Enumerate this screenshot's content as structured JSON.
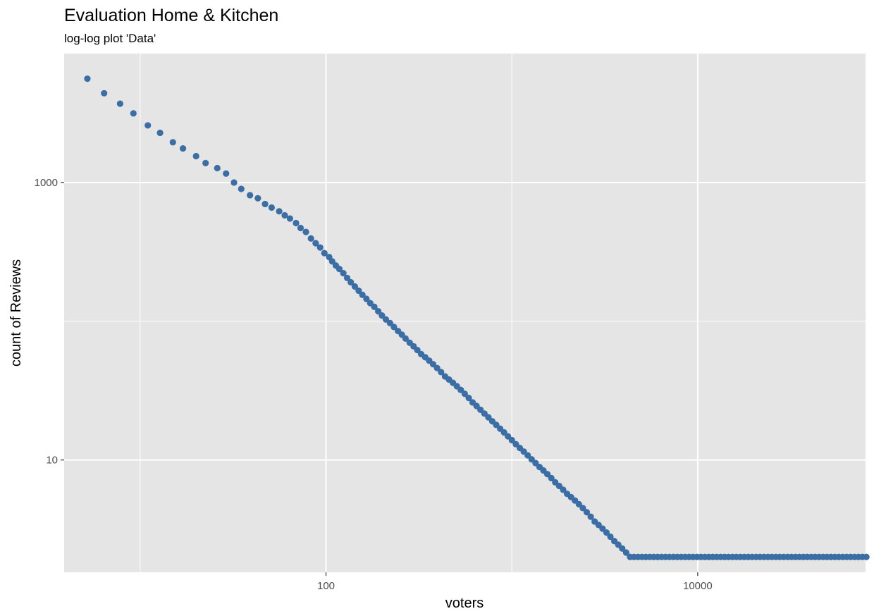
{
  "chart_data": {
    "type": "scatter",
    "title": "Evaluation Home & Kitchen",
    "subtitle": "log-log plot 'Data'",
    "xlabel": "voters",
    "ylabel": "count of Reviews",
    "x_scale": "log10",
    "y_scale": "log10",
    "xlim": [
      3.9,
      80000
    ],
    "ylim": [
      1.55,
      8500
    ],
    "x_ticks": [
      {
        "value": 100,
        "label": "100"
      },
      {
        "value": 10000,
        "label": "10000"
      }
    ],
    "y_ticks": [
      {
        "value": 10,
        "label": "10"
      },
      {
        "value": 1000,
        "label": "1000"
      }
    ],
    "grid": true,
    "legend": "none",
    "colors": {
      "point": "#3a6ea5",
      "panel": "#e5e5e5",
      "grid": "#ffffff"
    },
    "points": [
      [
        5.2,
        5600
      ],
      [
        6.4,
        4400
      ],
      [
        7.8,
        3700
      ],
      [
        9.2,
        3150
      ],
      [
        11,
        2580
      ],
      [
        12.8,
        2280
      ],
      [
        15,
        1950
      ],
      [
        17,
        1760
      ],
      [
        20,
        1550
      ],
      [
        22.5,
        1380
      ],
      [
        26,
        1270
      ],
      [
        29,
        1160
      ],
      [
        32,
        1000
      ],
      [
        35,
        900
      ],
      [
        39,
        810
      ],
      [
        43,
        770
      ],
      [
        47,
        700
      ],
      [
        51,
        660
      ],
      [
        56,
        620
      ],
      [
        60,
        580
      ],
      [
        64,
        550
      ],
      [
        69,
        510
      ],
      [
        73,
        470
      ],
      [
        78,
        440
      ],
      [
        83,
        395
      ],
      [
        88,
        365
      ],
      [
        93,
        340
      ],
      [
        98,
        310
      ],
      [
        104,
        290
      ],
      [
        108,
        270
      ],
      [
        113,
        252
      ],
      [
        118,
        238
      ],
      [
        124,
        222
      ],
      [
        130,
        205
      ],
      [
        136,
        191
      ],
      [
        143,
        178
      ],
      [
        150,
        166
      ],
      [
        157,
        155
      ],
      [
        165,
        145
      ],
      [
        173,
        135
      ],
      [
        182,
        127
      ],
      [
        191,
        118
      ],
      [
        200,
        110
      ],
      [
        210,
        103
      ],
      [
        221,
        97
      ],
      [
        232,
        91
      ],
      [
        244,
        85
      ],
      [
        256,
        80
      ],
      [
        268,
        75
      ],
      [
        282,
        70
      ],
      [
        296,
        66
      ],
      [
        310,
        62
      ],
      [
        325,
        58
      ],
      [
        342,
        55
      ],
      [
        359,
        52
      ],
      [
        377,
        49
      ],
      [
        396,
        46
      ],
      [
        416,
        43
      ],
      [
        437,
        40
      ],
      [
        459,
        38
      ],
      [
        482,
        36
      ],
      [
        506,
        34
      ],
      [
        531,
        32
      ],
      [
        558,
        30
      ],
      [
        586,
        28
      ],
      [
        615,
        26
      ],
      [
        646,
        24.5
      ],
      [
        678,
        23
      ],
      [
        712,
        21.6
      ],
      [
        748,
        20.3
      ],
      [
        785,
        19
      ],
      [
        824,
        17.9
      ],
      [
        865,
        16.8
      ],
      [
        908,
        15.8
      ],
      [
        953,
        14.8
      ],
      [
        1001,
        13.9
      ],
      [
        1051,
        13
      ],
      [
        1104,
        12.2
      ],
      [
        1159,
        11.5
      ],
      [
        1217,
        10.8
      ],
      [
        1278,
        10.1
      ],
      [
        1342,
        9.5
      ],
      [
        1409,
        8.9
      ],
      [
        1479,
        8.4
      ],
      [
        1553,
        7.9
      ],
      [
        1631,
        7.4
      ],
      [
        1712,
        6.9
      ],
      [
        1798,
        6.5
      ],
      [
        1888,
        6.1
      ],
      [
        1982,
        5.7
      ],
      [
        2081,
        5.4
      ],
      [
        2186,
        5.1
      ],
      [
        2295,
        4.8
      ],
      [
        2410,
        4.5
      ],
      [
        2530,
        4.2
      ],
      [
        2657,
        3.9
      ],
      [
        2790,
        3.6
      ],
      [
        2929,
        3.4
      ],
      [
        3076,
        3.2
      ],
      [
        3229,
        3.0
      ],
      [
        3391,
        2.8
      ],
      [
        3560,
        2.6
      ],
      [
        3738,
        2.45
      ],
      [
        3925,
        2.3
      ],
      [
        4122,
        2.15
      ],
      [
        4328,
        2.0
      ],
      [
        4544,
        2.0
      ],
      [
        4771,
        2.0
      ],
      [
        5010,
        2.0
      ],
      [
        5260,
        2.0
      ],
      [
        5523,
        2.0
      ],
      [
        5799,
        2.0
      ],
      [
        6089,
        2.0
      ],
      [
        6393,
        2.0
      ],
      [
        6713,
        2.0
      ],
      [
        7048,
        2.0
      ],
      [
        7400,
        2.0
      ],
      [
        7770,
        2.0
      ],
      [
        8159,
        2.0
      ],
      [
        8567,
        2.0
      ],
      [
        8995,
        2.0
      ],
      [
        9445,
        2.0
      ],
      [
        9917,
        2.0
      ],
      [
        10413,
        2.0
      ],
      [
        10934,
        2.0
      ],
      [
        11480,
        2.0
      ],
      [
        12054,
        2.0
      ],
      [
        12657,
        2.0
      ],
      [
        13290,
        2.0
      ],
      [
        13955,
        2.0
      ],
      [
        14652,
        2.0
      ],
      [
        15385,
        2.0
      ],
      [
        16154,
        2.0
      ],
      [
        16962,
        2.0
      ],
      [
        17810,
        2.0
      ],
      [
        18700,
        2.0
      ],
      [
        19635,
        2.0
      ],
      [
        20617,
        2.0
      ],
      [
        21648,
        2.0
      ],
      [
        22730,
        2.0
      ],
      [
        23867,
        2.0
      ],
      [
        25060,
        2.0
      ],
      [
        26313,
        2.0
      ],
      [
        27629,
        2.0
      ],
      [
        29010,
        2.0
      ],
      [
        30461,
        2.0
      ],
      [
        31984,
        2.0
      ],
      [
        33583,
        2.0
      ],
      [
        35262,
        2.0
      ],
      [
        37025,
        2.0
      ],
      [
        38877,
        2.0
      ],
      [
        40820,
        2.0
      ],
      [
        42861,
        2.0
      ],
      [
        45004,
        2.0
      ],
      [
        47255,
        2.0
      ],
      [
        49618,
        2.0
      ],
      [
        52098,
        2.0
      ],
      [
        54703,
        2.0
      ],
      [
        57439,
        2.0
      ],
      [
        60311,
        2.0
      ],
      [
        63326,
        2.0
      ],
      [
        66493,
        2.0
      ],
      [
        69817,
        2.0
      ],
      [
        73308,
        2.0
      ],
      [
        76974,
        2.0
      ],
      [
        80800,
        2.0
      ]
    ]
  }
}
